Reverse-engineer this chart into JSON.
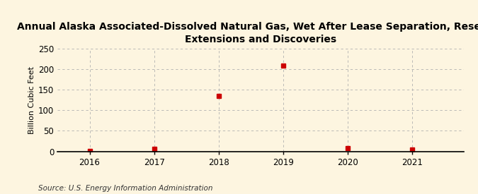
{
  "title": "Annual Alaska Associated-Dissolved Natural Gas, Wet After Lease Separation, Reserves\nExtensions and Discoveries",
  "ylabel": "Billion Cubic Feet",
  "source": "Source: U.S. Energy Information Administration",
  "background_color": "#fdf5e0",
  "plot_bg_color": "#fdf5e0",
  "years": [
    2016,
    2017,
    2018,
    2019,
    2020,
    2021
  ],
  "values": [
    1.0,
    5.5,
    134.0,
    209.0,
    8.5,
    3.5
  ],
  "marker_color": "#cc0000",
  "marker_size": 4,
  "ylim": [
    0,
    250
  ],
  "yticks": [
    0,
    50,
    100,
    150,
    200,
    250
  ],
  "xlim": [
    2015.5,
    2021.8
  ],
  "grid_color": "#b0b0b0",
  "title_fontsize": 10,
  "ylabel_fontsize": 8,
  "tick_fontsize": 8.5,
  "source_fontsize": 7.5
}
